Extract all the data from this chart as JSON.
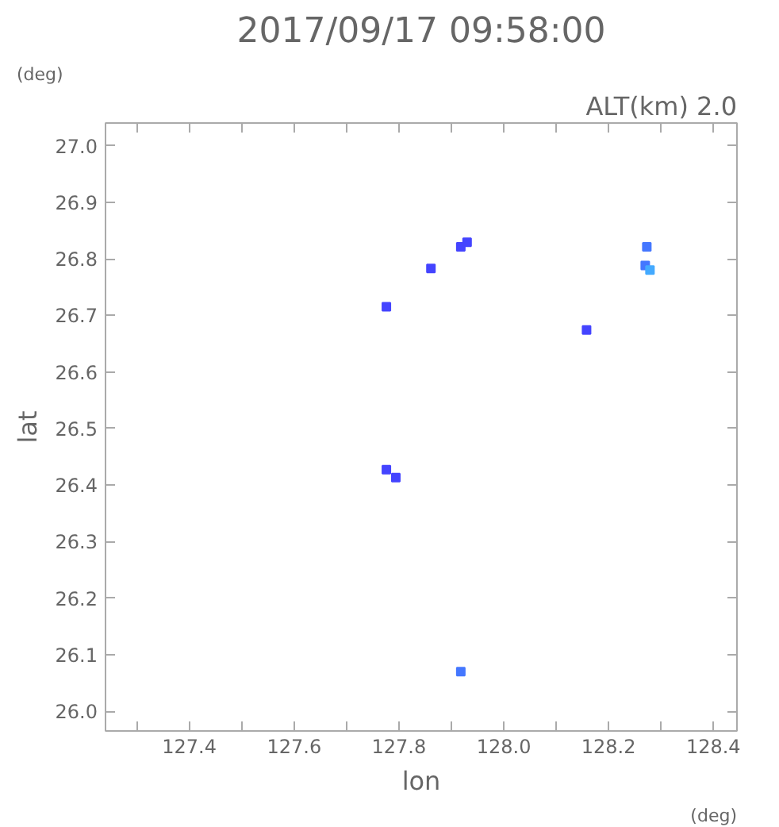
{
  "chart_data": {
    "type": "scatter",
    "title": "2017/09/17 09:58:00",
    "xlabel": "lon",
    "ylabel": "lat",
    "annotations": [
      "ALT(km) 2.0",
      "(deg)",
      "(deg)"
    ],
    "marker": "square",
    "series": [
      {
        "color": "#4444ff",
        "x": [
          127.776,
          127.861,
          127.918,
          127.93,
          128.158,
          127.776,
          127.794
        ],
        "values": [
          26.715,
          26.783,
          26.821,
          26.829,
          26.674,
          26.427,
          26.413
        ]
      },
      {
        "color": "#4477ff",
        "x": [
          128.273,
          128.27,
          127.918
        ],
        "values": [
          26.821,
          26.788,
          26.07
        ]
      },
      {
        "color": "#44aaff",
        "x": [
          128.279
        ],
        "values": [
          26.78
        ]
      }
    ],
    "xlim": [
      127.24,
      128.445
    ],
    "ylim": [
      25.965,
      27.04
    ],
    "xticks": [
      {
        "value": 127.3,
        "label": null
      },
      127.4,
      {
        "value": 127.5,
        "label": null
      },
      127.6,
      {
        "value": 127.7,
        "label": null
      },
      127.8,
      {
        "value": 127.9,
        "label": null
      },
      {
        "value": 128.0,
        "label": "128.0"
      },
      {
        "value": 128.1,
        "label": null
      },
      128.2,
      {
        "value": 128.3,
        "label": null
      },
      128.4
    ],
    "yticks": [
      {
        "value": 26.0,
        "label": "26.0"
      },
      26.1,
      26.2,
      26.3,
      26.4,
      26.5,
      26.6,
      26.7,
      26.8,
      26.9,
      {
        "value": 27.0,
        "label": "27.0"
      }
    ],
    "grid": false
  }
}
